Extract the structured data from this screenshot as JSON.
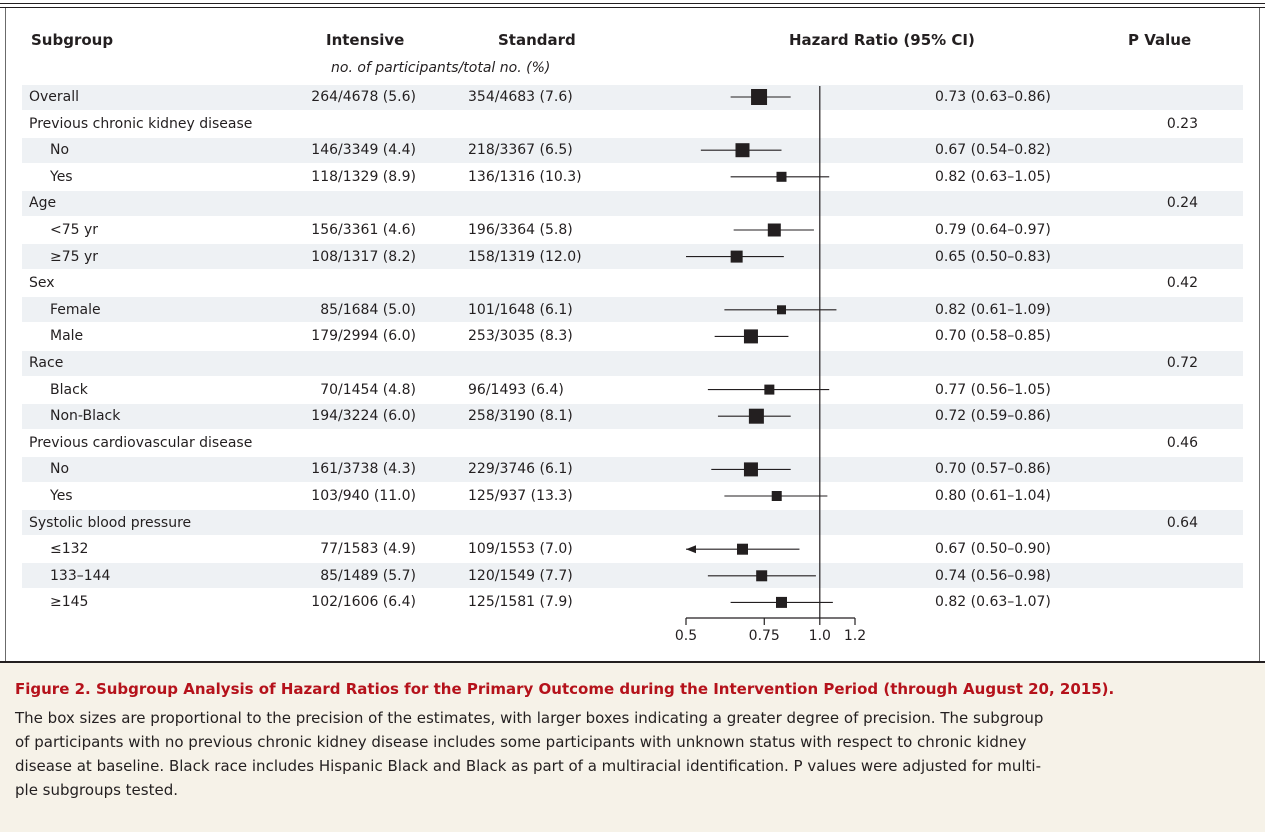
{
  "headers": {
    "subgroup": "Subgroup",
    "intensive": "Intensive",
    "standard": "Standard",
    "hazard_ratio": "Hazard Ratio (95% CI)",
    "p_value": "P Value",
    "units": "no. of participants/total no. (%)"
  },
  "rows": [
    {
      "label": "Overall",
      "indent": false,
      "intensive": "264/4678 (5.6)",
      "standard": "354/4683 (7.6)",
      "hr_text": "0.73 (0.63–0.86)",
      "p": "",
      "shaded": true
    },
    {
      "label": "Previous chronic kidney disease",
      "indent": false,
      "intensive": "",
      "standard": "",
      "hr_text": "",
      "p": "0.23",
      "shaded": false
    },
    {
      "label": "No",
      "indent": true,
      "intensive": "146/3349 (4.4)",
      "standard": "218/3367 (6.5)",
      "hr_text": "0.67 (0.54–0.82)",
      "p": "",
      "shaded": true
    },
    {
      "label": "Yes",
      "indent": true,
      "intensive": "118/1329 (8.9)",
      "standard": "136/1316 (10.3)",
      "hr_text": "0.82 (0.63–1.05)",
      "p": "",
      "shaded": false
    },
    {
      "label": "Age",
      "indent": false,
      "intensive": "",
      "standard": "",
      "hr_text": "",
      "p": "0.24",
      "shaded": true
    },
    {
      "label": "<75 yr",
      "indent": true,
      "intensive": "156/3361 (4.6)",
      "standard": "196/3364 (5.8)",
      "hr_text": "0.79 (0.64–0.97)",
      "p": "",
      "shaded": false
    },
    {
      "label": "≥75 yr",
      "indent": true,
      "intensive": "108/1317 (8.2)",
      "standard": "158/1319 (12.0)",
      "hr_text": "0.65 (0.50–0.83)",
      "p": "",
      "shaded": true
    },
    {
      "label": "Sex",
      "indent": false,
      "intensive": "",
      "standard": "",
      "hr_text": "",
      "p": "0.42",
      "shaded": false
    },
    {
      "label": "Female",
      "indent": true,
      "intensive": "85/1684 (5.0)",
      "standard": "101/1648 (6.1)",
      "hr_text": "0.82 (0.61–1.09)",
      "p": "",
      "shaded": true
    },
    {
      "label": "Male",
      "indent": true,
      "intensive": "179/2994 (6.0)",
      "standard": "253/3035 (8.3)",
      "hr_text": "0.70 (0.58–0.85)",
      "p": "",
      "shaded": false
    },
    {
      "label": "Race",
      "indent": false,
      "intensive": "",
      "standard": "",
      "hr_text": "",
      "p": "0.72",
      "shaded": true
    },
    {
      "label": "Black",
      "indent": true,
      "intensive": "70/1454 (4.8)",
      "standard": "96/1493 (6.4)",
      "hr_text": "0.77 (0.56–1.05)",
      "p": "",
      "shaded": false
    },
    {
      "label": "Non-Black",
      "indent": true,
      "intensive": "194/3224 (6.0)",
      "standard": "258/3190 (8.1)",
      "hr_text": "0.72 (0.59–0.86)",
      "p": "",
      "shaded": true
    },
    {
      "label": "Previous cardiovascular disease",
      "indent": false,
      "intensive": "",
      "standard": "",
      "hr_text": "",
      "p": "0.46",
      "shaded": false
    },
    {
      "label": "No",
      "indent": true,
      "intensive": "161/3738 (4.3)",
      "standard": "229/3746 (6.1)",
      "hr_text": "0.70 (0.57–0.86)",
      "p": "",
      "shaded": true
    },
    {
      "label": "Yes",
      "indent": true,
      "intensive": "103/940 (11.0)",
      "standard": "125/937 (13.3)",
      "hr_text": "0.80 (0.61–1.04)",
      "p": "",
      "shaded": false
    },
    {
      "label": "Systolic blood pressure",
      "indent": false,
      "intensive": "",
      "standard": "",
      "hr_text": "",
      "p": "0.64",
      "shaded": true
    },
    {
      "label": "≤132",
      "indent": true,
      "intensive": "77/1583 (4.9)",
      "standard": "109/1553 (7.0)",
      "hr_text": "0.67 (0.50–0.90)",
      "p": "",
      "shaded": false
    },
    {
      "label": "133–144",
      "indent": true,
      "intensive": "85/1489 (5.7)",
      "standard": "120/1549 (7.7)",
      "hr_text": "0.74 (0.56–0.98)",
      "p": "",
      "shaded": true
    },
    {
      "label": "≥145",
      "indent": true,
      "intensive": "102/1606 (6.4)",
      "standard": "125/1581 (7.9)",
      "hr_text": "0.82 (0.63–1.07)",
      "p": "",
      "shaded": false
    }
  ],
  "chart_data": {
    "type": "forest",
    "scale": "log",
    "x_ticks": [
      0.5,
      0.75,
      1.0,
      1.2
    ],
    "x_tick_labels": [
      "0.5",
      "0.75",
      "1.0",
      "1.2"
    ],
    "xlim": [
      0.5,
      1.2
    ],
    "reference_line": 1.0,
    "estimates": [
      {
        "row": 0,
        "hr": 0.73,
        "lo": 0.63,
        "hi": 0.86,
        "box_size": 16
      },
      {
        "row": 2,
        "hr": 0.67,
        "lo": 0.54,
        "hi": 0.82,
        "box_size": 14
      },
      {
        "row": 3,
        "hr": 0.82,
        "lo": 0.63,
        "hi": 1.05,
        "box_size": 10
      },
      {
        "row": 5,
        "hr": 0.79,
        "lo": 0.64,
        "hi": 0.97,
        "box_size": 13
      },
      {
        "row": 6,
        "hr": 0.65,
        "lo": 0.5,
        "hi": 0.83,
        "box_size": 12
      },
      {
        "row": 8,
        "hr": 0.82,
        "lo": 0.61,
        "hi": 1.09,
        "box_size": 9
      },
      {
        "row": 9,
        "hr": 0.7,
        "lo": 0.58,
        "hi": 0.85,
        "box_size": 14
      },
      {
        "row": 11,
        "hr": 0.77,
        "lo": 0.56,
        "hi": 1.05,
        "box_size": 10
      },
      {
        "row": 12,
        "hr": 0.72,
        "lo": 0.59,
        "hi": 0.86,
        "box_size": 15
      },
      {
        "row": 14,
        "hr": 0.7,
        "lo": 0.57,
        "hi": 0.86,
        "box_size": 14
      },
      {
        "row": 15,
        "hr": 0.8,
        "lo": 0.61,
        "hi": 1.04,
        "box_size": 10
      },
      {
        "row": 17,
        "hr": 0.67,
        "lo": 0.5,
        "hi": 0.9,
        "box_size": 11,
        "lower_arrow": true
      },
      {
        "row": 18,
        "hr": 0.74,
        "lo": 0.56,
        "hi": 0.98,
        "box_size": 11
      },
      {
        "row": 19,
        "hr": 0.82,
        "lo": 0.63,
        "hi": 1.07,
        "box_size": 11
      }
    ]
  },
  "caption": {
    "title": "Figure 2. Subgroup Analysis of Hazard Ratios for the Primary Outcome during the Intervention Period (through August 20, 2015).",
    "lines": [
      "The box sizes are proportional to the precision of the estimates, with larger boxes indicating a greater degree of precision. The subgroup",
      "of participants with no previous chronic kidney disease includes some participants with unknown status with respect to chronic kidney",
      "disease at baseline. Black race includes Hispanic Black and Black as part of a multiracial identification. P values were adjusted for multi-",
      "ple subgroups tested."
    ]
  },
  "colors": {
    "caption_title": "#b5121b",
    "caption_bg": "#f6f2e8",
    "row_shade": "#eef1f4",
    "ink": "#231f20"
  }
}
